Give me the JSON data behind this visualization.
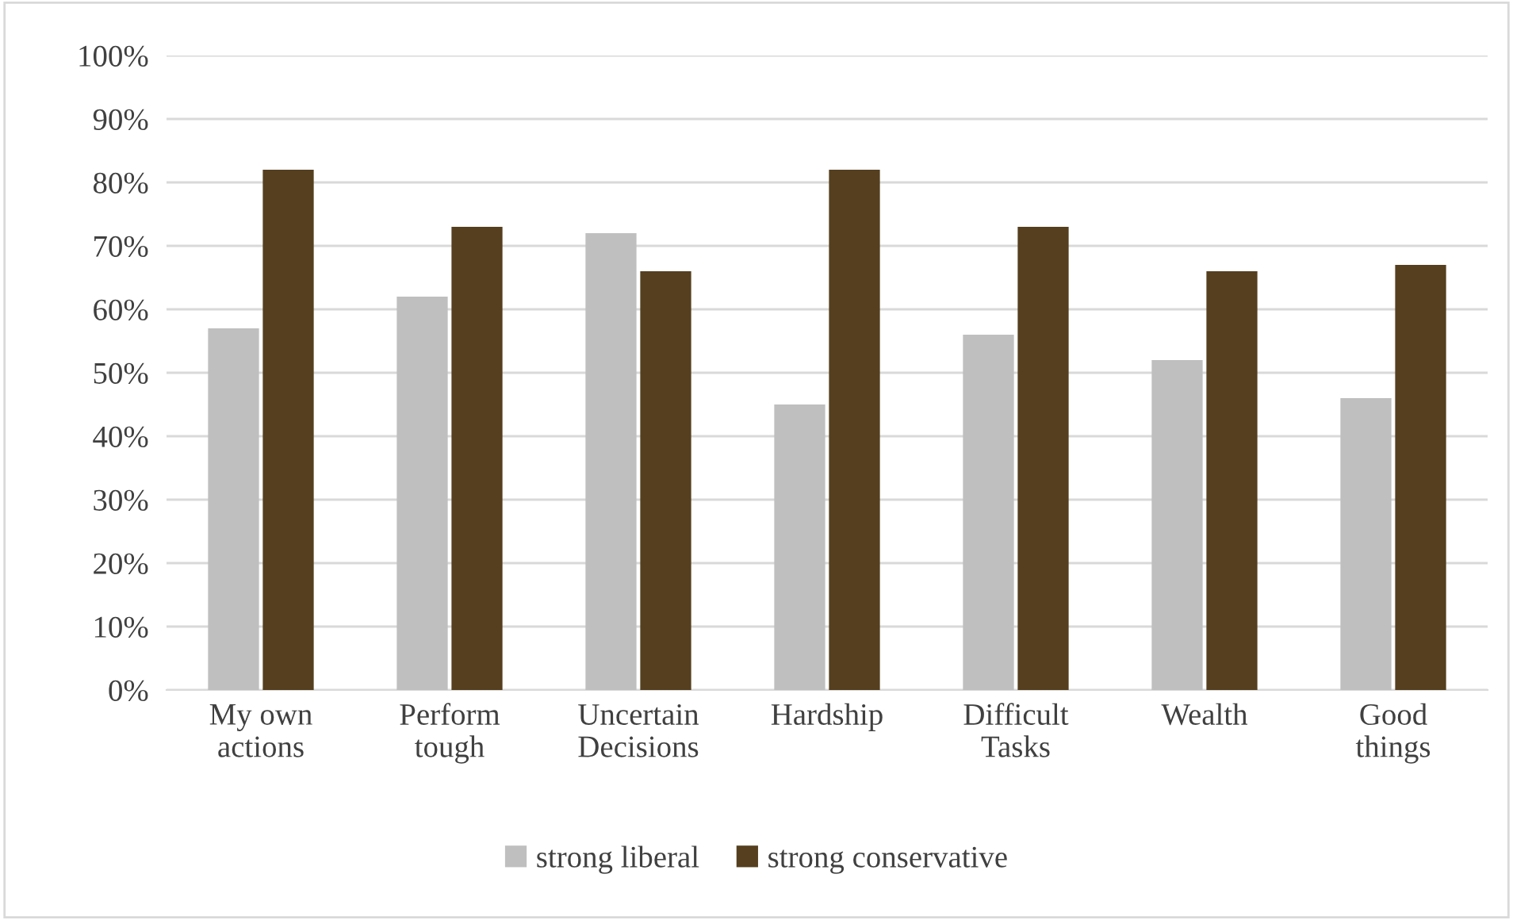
{
  "chart_data": {
    "type": "bar",
    "categories": [
      "My own\nactions",
      "Perform\ntough",
      "Uncertain\nDecisions",
      "Hardship",
      "Difficult\nTasks",
      "Wealth",
      "Good\nthings"
    ],
    "series": [
      {
        "name": "strong liberal",
        "color": "#bfbfbf",
        "values": [
          57,
          62,
          72,
          45,
          56,
          52,
          46
        ]
      },
      {
        "name": "strong conservative",
        "color": "#553f1f",
        "values": [
          82,
          73,
          66,
          82,
          73,
          66,
          67
        ]
      }
    ],
    "ylim": [
      0,
      100
    ],
    "yticks": [
      {
        "value": 0,
        "label": "0%"
      },
      {
        "value": 10,
        "label": "10%"
      },
      {
        "value": 20,
        "label": "20%"
      },
      {
        "value": 30,
        "label": "30%"
      },
      {
        "value": 40,
        "label": "40%"
      },
      {
        "value": 50,
        "label": "50%"
      },
      {
        "value": 60,
        "label": "60%"
      },
      {
        "value": 70,
        "label": "70%"
      },
      {
        "value": 80,
        "label": "80%"
      },
      {
        "value": 90,
        "label": "90%"
      },
      {
        "value": 100,
        "label": "100%"
      }
    ],
    "grid": "y",
    "legend": "bottom"
  }
}
